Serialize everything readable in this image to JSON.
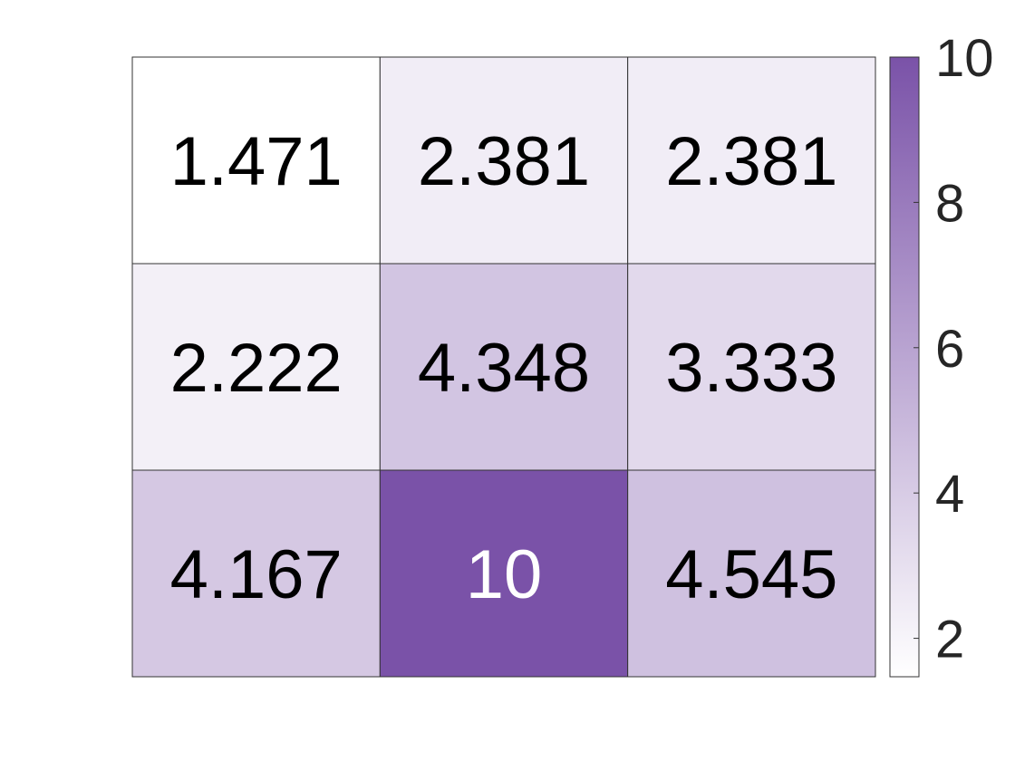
{
  "chart_data": {
    "type": "heatmap",
    "rows": 3,
    "cols": 3,
    "values": [
      [
        1.471,
        2.381,
        2.381
      ],
      [
        2.222,
        4.348,
        3.333
      ],
      [
        4.167,
        10,
        4.545
      ]
    ],
    "labels": [
      [
        "1.471",
        "2.381",
        "2.381"
      ],
      [
        "2.222",
        "4.348",
        "3.333"
      ],
      [
        "4.167",
        "10",
        "4.545"
      ]
    ],
    "colorbar": {
      "min": 1.471,
      "max": 10,
      "ticks": [
        2,
        4,
        6,
        8,
        10
      ],
      "tick_labels": [
        "2",
        "4",
        "6",
        "8",
        "10"
      ],
      "colormap": [
        "#ffffff",
        "#7a52a8"
      ]
    }
  },
  "colors": {
    "low": "#ffffff",
    "high": "#7a52a8",
    "text_dark": "#000000",
    "text_light": "#ffffff",
    "grid": "#333333"
  }
}
